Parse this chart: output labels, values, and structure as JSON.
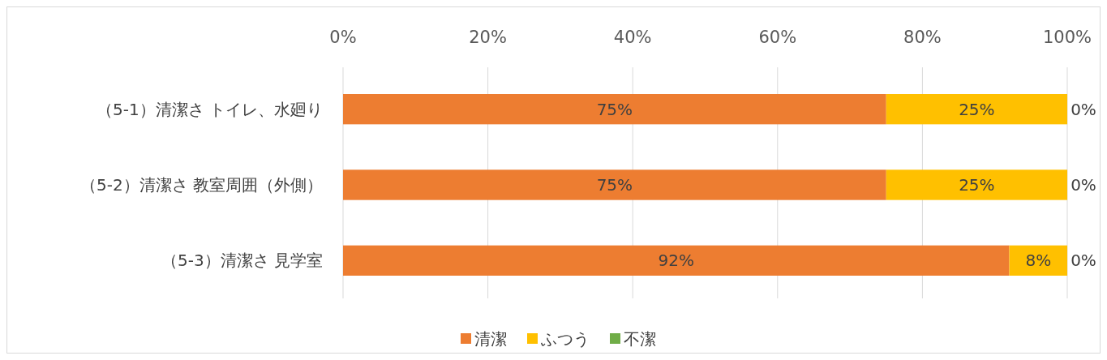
{
  "chart_data": {
    "type": "bar",
    "orientation": "horizontal",
    "stacked": true,
    "categories": [
      "（5-1）清潔さ トイレ、水廻り",
      "（5-2）清潔さ 教室周囲（外側）",
      "（5-3）清潔さ 見学室"
    ],
    "series": [
      {
        "name": "清潔",
        "color": "#ed7d31",
        "values": [
          75,
          75,
          92
        ],
        "value_labels": [
          "75%",
          "75%",
          "92%"
        ]
      },
      {
        "name": "ふつう",
        "color": "#ffc000",
        "values": [
          25,
          25,
          8
        ],
        "value_labels": [
          "25%",
          "25%",
          "8%"
        ]
      },
      {
        "name": "不潔",
        "color": "#70ad47",
        "values": [
          0,
          0,
          0
        ],
        "value_labels": [
          "0%",
          "0%",
          "0%"
        ]
      }
    ],
    "xlim": [
      0,
      100
    ],
    "xticks": [
      {
        "value": 0,
        "label": "0%"
      },
      {
        "value": 20,
        "label": "20%"
      },
      {
        "value": 40,
        "label": "40%"
      },
      {
        "value": 60,
        "label": "60%"
      },
      {
        "value": 80,
        "label": "80%"
      },
      {
        "value": 100,
        "label": "100%"
      }
    ],
    "grid": "x",
    "legend": "bottom"
  }
}
